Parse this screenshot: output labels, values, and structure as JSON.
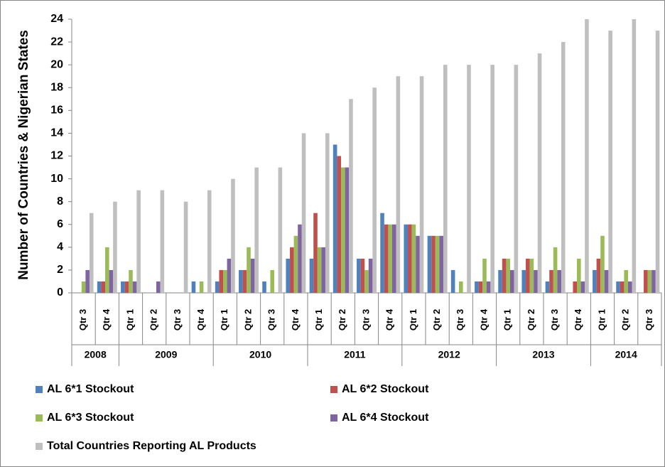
{
  "chart_data": {
    "type": "bar",
    "y_label": "Number of Countries & Nigerian States",
    "groups": [
      {
        "name": "2008",
        "categories": [
          "Qtr 3",
          "Qtr 4"
        ]
      },
      {
        "name": "2009",
        "categories": [
          "Qtr 1",
          "Qtr 2",
          "Qtr 3",
          "Qtr 4"
        ]
      },
      {
        "name": "2010",
        "categories": [
          "Qtr 1",
          "Qtr 2",
          "Qtr 3",
          "Qtr 4"
        ]
      },
      {
        "name": "2011",
        "categories": [
          "Qtr 1",
          "Qtr 2",
          "Qtr 3",
          "Qtr 4"
        ]
      },
      {
        "name": "2012",
        "categories": [
          "Qtr 1",
          "Qtr 2",
          "Qtr 3",
          "Qtr 4"
        ]
      },
      {
        "name": "2013",
        "categories": [
          "Qtr 1",
          "Qtr 2",
          "Qtr 3",
          "Qtr 4"
        ]
      },
      {
        "name": "2014",
        "categories": [
          "Qtr 1",
          "Qtr 2",
          "Qtr 3"
        ]
      }
    ],
    "series": [
      {
        "name": "AL 6*1 Stockout",
        "color": "#4f81bd",
        "values": [
          0,
          1,
          1,
          0,
          0,
          1,
          1,
          2,
          1,
          3,
          3,
          13,
          3,
          7,
          6,
          5,
          2,
          1,
          2,
          2,
          1,
          0,
          2,
          1,
          0
        ]
      },
      {
        "name": "AL 6*2 Stockout",
        "color": "#c0504d",
        "values": [
          0,
          1,
          1,
          0,
          0,
          0,
          2,
          2,
          0,
          4,
          7,
          12,
          3,
          6,
          6,
          5,
          0,
          1,
          3,
          3,
          2,
          1,
          3,
          1,
          2
        ]
      },
      {
        "name": "AL 6*3 Stockout",
        "color": "#9bbb59",
        "values": [
          1,
          4,
          2,
          0,
          0,
          1,
          2,
          4,
          2,
          5,
          4,
          11,
          2,
          6,
          6,
          5,
          1,
          3,
          3,
          3,
          4,
          3,
          5,
          2,
          2
        ]
      },
      {
        "name": "AL 6*4 Stockout",
        "color": "#8064a2",
        "values": [
          2,
          2,
          1,
          1,
          0,
          0,
          3,
          3,
          0,
          6,
          4,
          11,
          3,
          6,
          5,
          5,
          0,
          1,
          2,
          2,
          2,
          1,
          2,
          1,
          2
        ]
      },
      {
        "name": "Total Countries Reporting AL Products",
        "color": "#bfbfbf",
        "values": [
          7,
          8,
          9,
          9,
          8,
          9,
          10,
          11,
          11,
          14,
          14,
          17,
          18,
          19,
          19,
          20,
          20,
          20,
          20,
          21,
          22,
          24,
          23,
          24,
          23
        ]
      }
    ],
    "ylim": [
      0,
      24
    ],
    "yticks": [
      0,
      2,
      4,
      6,
      8,
      10,
      12,
      14,
      16,
      18,
      20,
      22,
      24
    ],
    "legend": "bottom"
  }
}
